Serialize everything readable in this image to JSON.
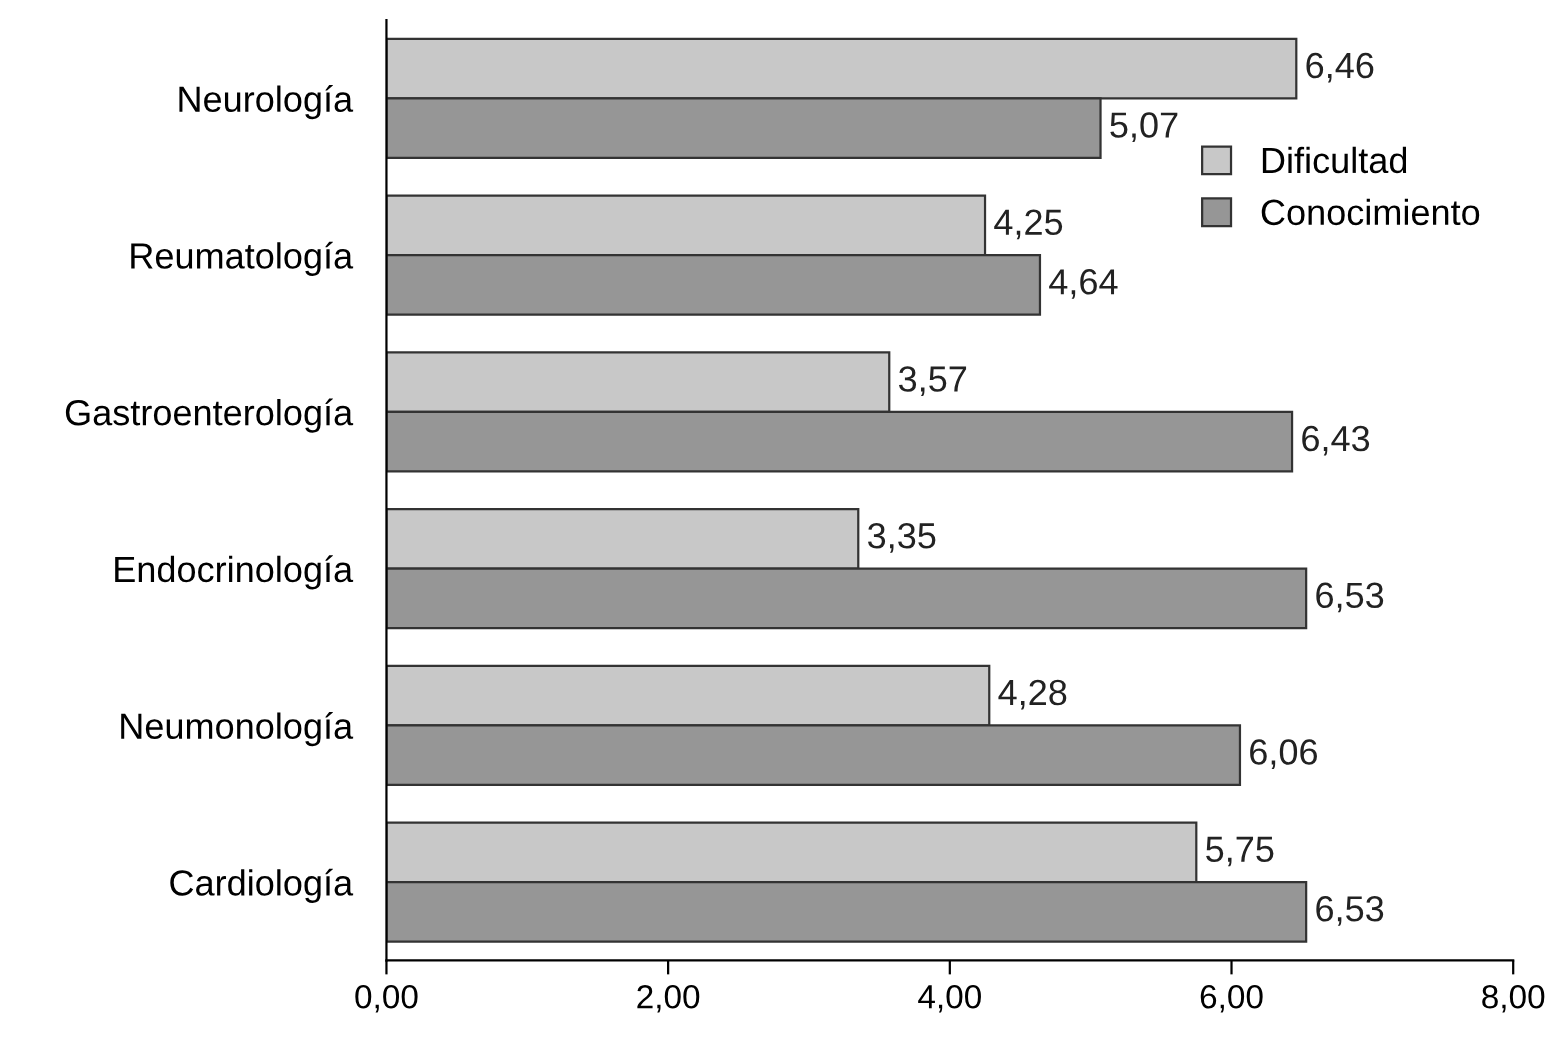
{
  "chart_data": {
    "type": "bar",
    "orientation": "horizontal",
    "categories": [
      "Neurología",
      "Reumatología",
      "Gastroenterología",
      "Endocrinología",
      "Neumonología",
      "Cardiología"
    ],
    "series": [
      {
        "name": "Dificultad",
        "color": "#c8c8c8",
        "values": [
          6.46,
          4.25,
          3.57,
          3.35,
          4.28,
          5.75
        ],
        "value_labels": [
          "6,46",
          "4,25",
          "3,57",
          "3,35",
          "4,28",
          "5,75"
        ]
      },
      {
        "name": "Conocimiento",
        "color": "#969696",
        "values": [
          5.07,
          4.64,
          6.43,
          6.53,
          6.06,
          6.53
        ],
        "value_labels": [
          "5,07",
          "4,64",
          "6,43",
          "6,53",
          "6,06",
          "6,53"
        ]
      }
    ],
    "xlim": [
      0,
      8
    ],
    "xticks": [
      {
        "value": 0,
        "label": "0,00"
      },
      {
        "value": 2,
        "label": "2,00"
      },
      {
        "value": 4,
        "label": "4,00"
      },
      {
        "value": 6,
        "label": "6,00"
      },
      {
        "value": 8,
        "label": "8,00"
      }
    ],
    "grid": false,
    "legend": "top right"
  }
}
